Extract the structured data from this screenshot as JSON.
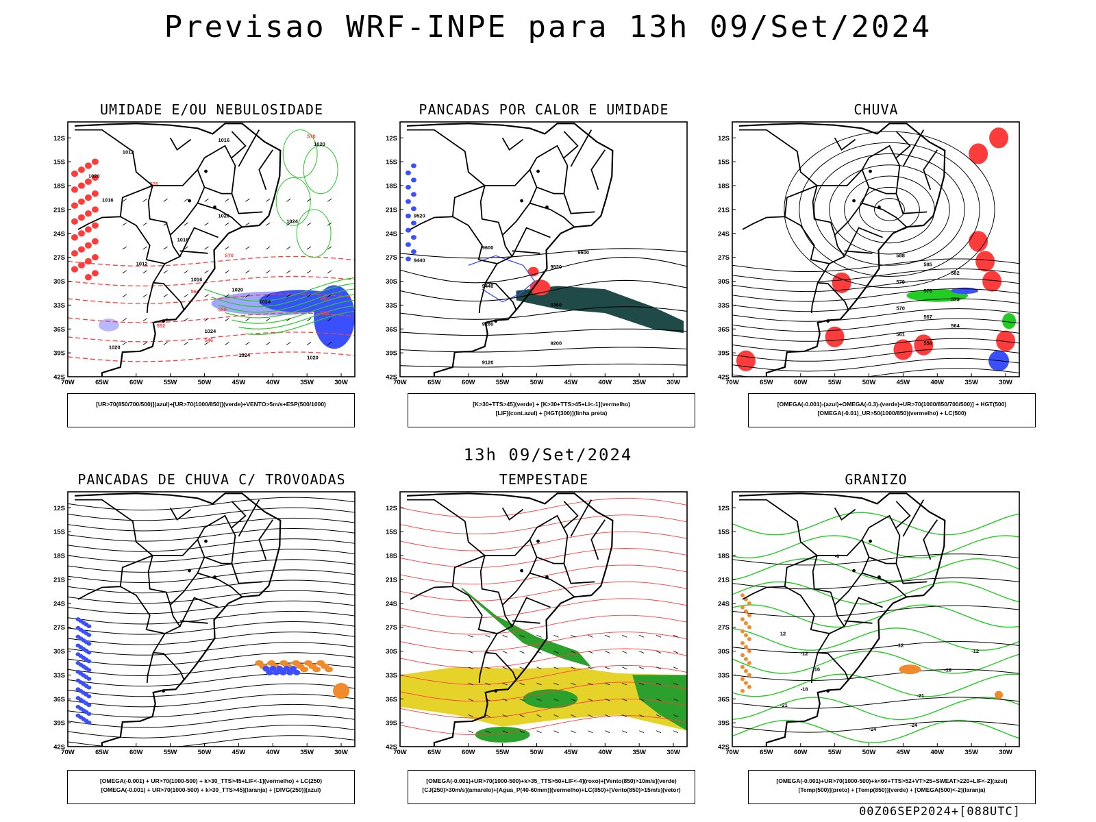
{
  "title": "Previsao WRF-INPE  para 13h 09/Set/2024",
  "mid_label": "13h 09/Set/2024",
  "footer": "00Z06SEP2024+[088UTC]",
  "axes": {
    "lat_ticks": [
      "12S",
      "15S",
      "18S",
      "21S",
      "24S",
      "27S",
      "30S",
      "33S",
      "36S",
      "39S",
      "42S"
    ],
    "lon_ticks": [
      "70W",
      "65W",
      "60W",
      "55W",
      "50W",
      "45W",
      "40W",
      "35W",
      "30W"
    ]
  },
  "colors": {
    "red": "#ff3c3c",
    "green": "#22cc22",
    "blue": "#3a50ff",
    "light_blue": "#9aa2ff",
    "dark_teal": "#1f4a48",
    "yellow": "#e6d32a",
    "orange": "#f08a2a",
    "gray_ice": "#b8b8ff"
  },
  "panels": [
    {
      "title": "UMIDADE E/OU NEBULOSIDADE",
      "legend": [
        "[UR>70(850/700/500)](azul)+[UR>70(1000/850)](verde)+VENTO>5m/s+ESP(500/1000)"
      ],
      "contour_labels": [
        "1012",
        "1016",
        "1020",
        "1024",
        "576",
        "570",
        "564",
        "558",
        "552",
        "546"
      ]
    },
    {
      "title": "PANCADAS POR CALOR E UMIDADE",
      "legend": [
        "[K>30+TTS>45](verde) + [K>30+TTS>45+LI<-1](vermelho)",
        "[LIF](cont.azul) + [HGT(300)](linha preta)"
      ],
      "contour_labels": [
        "9600",
        "9520",
        "9440",
        "9360",
        "9280",
        "9200",
        "9120"
      ]
    },
    {
      "title": "CHUVA",
      "legend": [
        "[OMEGA(-0.001)-(azul)+OMEGA(-0.3)-(verde)+UR>70(1000/850/700/500)] + HGT(500)",
        "[OMEGA(-0.01)_UR>50(1000/850)(vermelho) + LC(500)"
      ],
      "contour_labels": [
        "588",
        "585",
        "582",
        "579",
        "576",
        "573",
        "570",
        "567",
        "564",
        "561",
        "558"
      ]
    },
    {
      "title": "PANCADAS DE CHUVA C/ TROVOADAS",
      "legend": [
        "[OMEGA(-0.001) + UR>70(1000-500) + k>30_TTS>45+LIF<-1](vermelho) + LC(250)",
        "[OMEGA(-0.001) + UR>70(1000-500) + k>30_TTS>45](laranja) + [DIVG(250)](azul)"
      ],
      "contour_labels": []
    },
    {
      "title": "TEMPESTADE",
      "legend": [
        "[OMEGA(-0.001)+UR>70(1000-500)+k>35_TTS>50+LIF<-4](roxo)+[Vento(850)>10m/s](verde)",
        "[CJ(250)>30m/s](amarelo)+[Agua_P(40-60mm)](vermelho)+LC(850)+[Vento(850)>15m/s](vetor)"
      ],
      "contour_labels": []
    },
    {
      "title": "GRANIZO",
      "legend": [
        "[OMEGA(-0.001)+UR>70(1000-500)+k<60+TTS>52+VT>25+SWEAT>220+LIF<-2](azul)",
        "[Temp(500)](preto) + [Temp(850)](verde) + [OMEGA(500)<-2](laranja)"
      ],
      "contour_labels": [
        "-6",
        "-12",
        "-18",
        "-21",
        "-24",
        "12",
        "16"
      ]
    }
  ]
}
